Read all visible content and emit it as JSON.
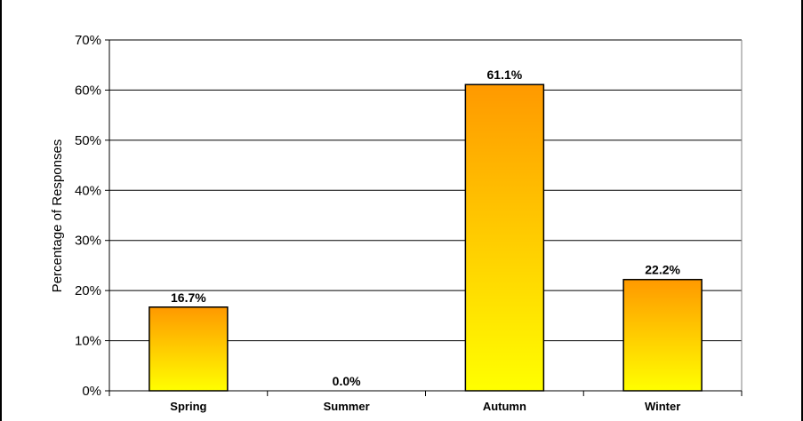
{
  "chart_data": {
    "type": "bar",
    "categories": [
      "Spring",
      "Summer",
      "Autumn",
      "Winter"
    ],
    "values": [
      16.7,
      0.0,
      61.1,
      22.2
    ],
    "data_labels": [
      "16.7%",
      "0.0%",
      "61.1%",
      "22.2%"
    ],
    "ylabel": "Percentage of Responses",
    "xlabel": "",
    "ylim": [
      0,
      70
    ],
    "yticks": [
      0,
      10,
      20,
      30,
      40,
      50,
      60,
      70
    ],
    "ytick_labels": [
      "0%",
      "10%",
      "20%",
      "30%",
      "40%",
      "50%",
      "60%",
      "70%"
    ],
    "grid": true,
    "legend": "none",
    "colors": {
      "bar_top": "#ff9900",
      "bar_bottom": "#ffff00",
      "grid": "#000000"
    }
  }
}
